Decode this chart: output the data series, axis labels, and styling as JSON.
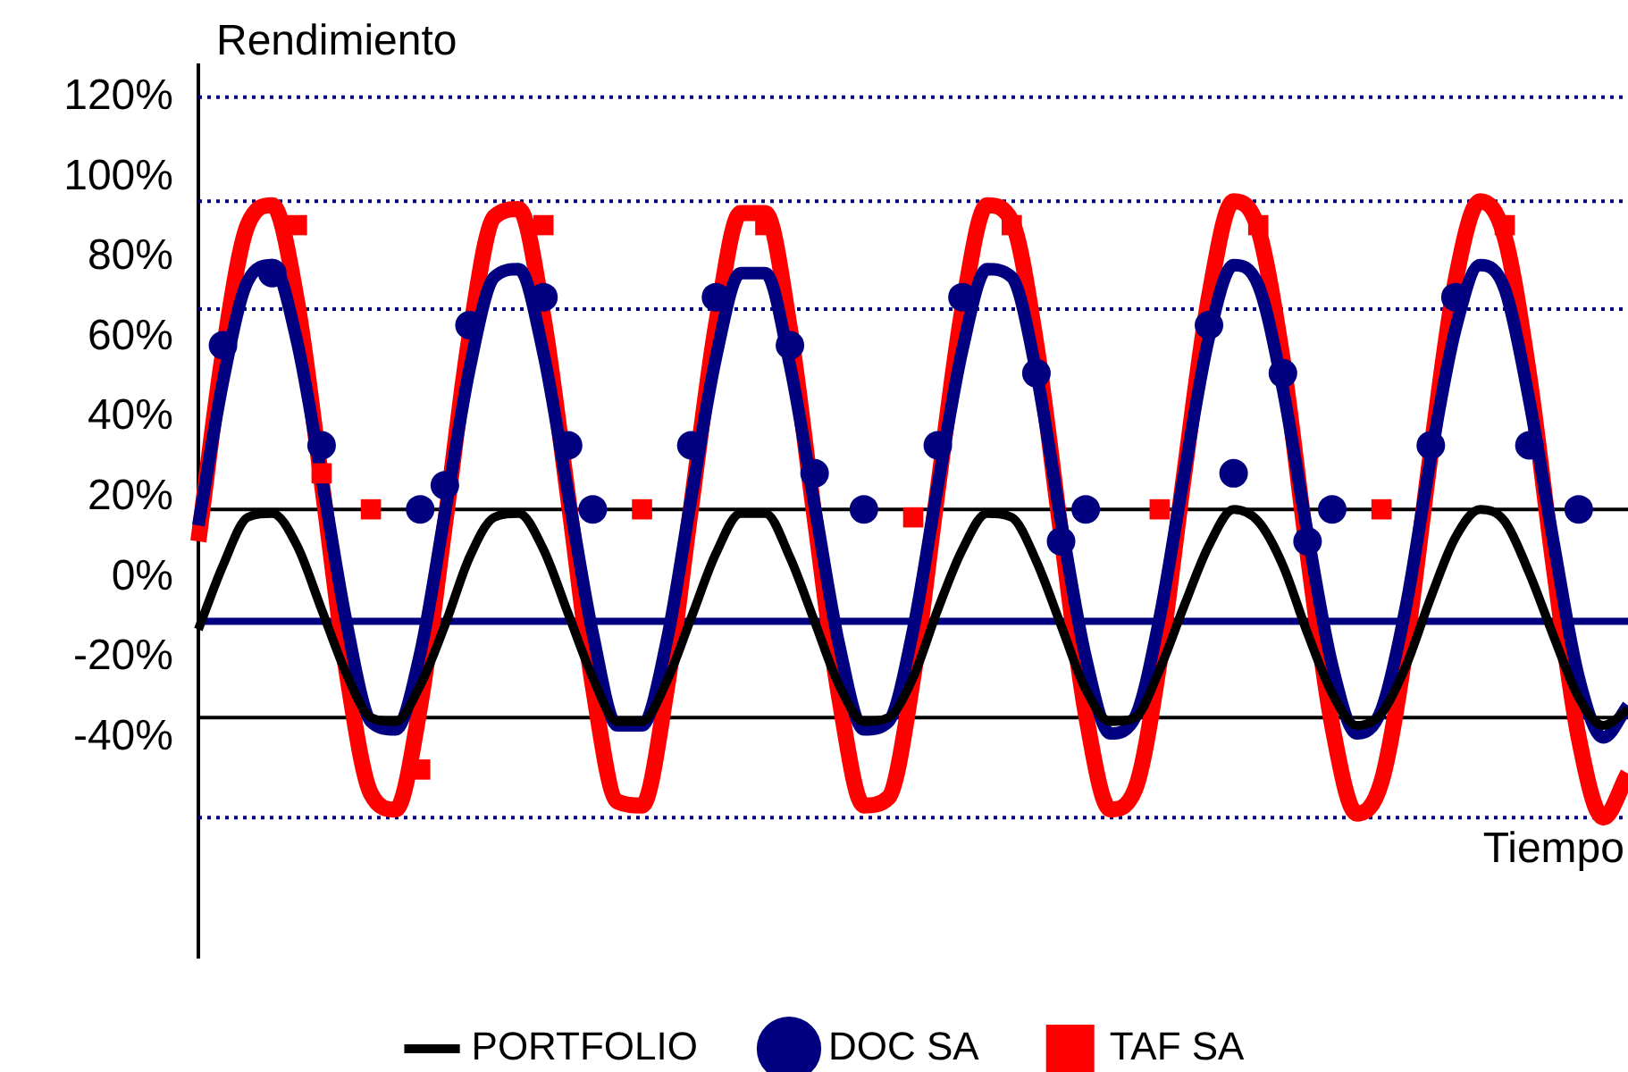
{
  "chart_data": {
    "type": "line",
    "ylabel": "Rendimiento",
    "xlabel": "Tiempo",
    "categories": [
      null,
      null,
      null,
      null,
      null,
      null,
      null,
      null,
      null,
      null,
      null,
      null,
      null,
      null,
      null,
      null,
      null,
      null,
      null,
      null,
      null,
      null,
      null,
      null,
      null,
      null,
      null,
      null,
      null,
      null,
      null,
      null,
      null,
      null,
      null,
      null,
      null,
      null,
      null,
      null,
      null,
      null,
      null,
      null,
      null,
      null,
      null,
      null,
      null,
      null,
      null,
      null,
      null,
      null,
      null,
      null,
      null,
      null,
      null
    ],
    "series": [
      {
        "name": "PORTFOLIO",
        "color": "#000000",
        "marker": "none",
        "values": [
          -13,
          3,
          15,
          16,
          8,
          -8,
          -24,
          -35,
          -36,
          -27,
          -12,
          5,
          15,
          16,
          7,
          -9,
          -25,
          -36,
          -36,
          -26,
          -10,
          6,
          16,
          16,
          5,
          -11,
          -27,
          -36,
          -35,
          -25,
          -8,
          7,
          16,
          15,
          4,
          -12,
          -28,
          -36,
          -35,
          -23,
          -7,
          8,
          17,
          14,
          3,
          -14,
          -29,
          -37,
          -34,
          -22,
          -5,
          10,
          17,
          14,
          1,
          -15,
          -30,
          -37,
          -33
        ]
      },
      {
        "name": "DOC SA",
        "color": "#000080",
        "marker": "none",
        "values": [
          13,
          49,
          74,
          78,
          59,
          25,
          -11,
          -36,
          -38,
          -19,
          16,
          52,
          75,
          77,
          56,
          21,
          -14,
          -37,
          -37,
          -16,
          20,
          55,
          76,
          76,
          53,
          18,
          -17,
          -38,
          -36,
          -13,
          23,
          57,
          77,
          75,
          51,
          14,
          -20,
          -39,
          -35,
          -10,
          26,
          60,
          78,
          73,
          47,
          11,
          -22,
          -39,
          -33,
          -7,
          30,
          62,
          78,
          72,
          44,
          8,
          -25,
          -40,
          -32
        ]
      },
      {
        "name": "TAF SA",
        "color": "#ff0000",
        "marker": "none",
        "values": [
          9,
          56,
          88,
          93,
          69,
          24,
          -23,
          -54,
          -58,
          -32,
          13,
          60,
          90,
          92,
          65,
          20,
          -27,
          -56,
          -57,
          -28,
          18,
          63,
          91,
          91,
          62,
          15,
          -30,
          -57,
          -55,
          -25,
          22,
          67,
          93,
          89,
          58,
          11,
          -34,
          -58,
          -53,
          -21,
          26,
          70,
          94,
          87,
          54,
          6,
          -37,
          -59,
          -51,
          -17,
          31,
          74,
          94,
          85,
          50,
          2,
          -40,
          -60,
          -49
        ]
      },
      {
        "type": "scatter",
        "color": "#000080",
        "marker": "circle",
        "values": [
          null,
          58,
          null,
          76,
          null,
          33,
          null,
          null,
          null,
          17,
          23,
          63,
          null,
          null,
          70,
          33,
          17,
          null,
          null,
          null,
          33,
          70,
          null,
          null,
          58,
          26,
          null,
          17,
          null,
          null,
          33,
          70,
          null,
          null,
          51,
          9,
          17,
          null,
          null,
          null,
          null,
          63,
          26,
          null,
          51,
          9,
          17,
          null,
          null,
          null,
          33,
          70,
          null,
          null,
          33,
          null,
          17,
          null,
          null
        ]
      },
      {
        "type": "scatter",
        "color": "#ff0000",
        "marker": "square",
        "values": [
          null,
          null,
          null,
          null,
          88,
          26,
          null,
          17,
          null,
          -48,
          null,
          null,
          null,
          null,
          88,
          null,
          null,
          null,
          17,
          null,
          null,
          null,
          null,
          88,
          null,
          null,
          null,
          null,
          null,
          15,
          null,
          null,
          null,
          88,
          null,
          null,
          null,
          null,
          null,
          17,
          null,
          null,
          null,
          88,
          null,
          null,
          null,
          null,
          17,
          null,
          null,
          null,
          null,
          88,
          null,
          null,
          null,
          null,
          null
        ]
      }
    ],
    "ylim": [
      -95,
      128
    ],
    "yticks": [
      {
        "value": 120,
        "label": "120%"
      },
      {
        "value": 100,
        "label": "100%"
      },
      {
        "value": 80,
        "label": "80%"
      },
      {
        "value": 60,
        "label": "60%"
      },
      {
        "value": 40,
        "label": "40%"
      },
      {
        "value": 20,
        "label": "20%"
      },
      {
        "value": 0,
        "label": "0%"
      },
      {
        "value": -20,
        "label": "-20%"
      },
      {
        "value": -40,
        "label": "-40%"
      }
    ],
    "ref_lines": [
      {
        "axis": "y",
        "value": 120,
        "color": "#000080",
        "line_style": "dotted"
      },
      {
        "axis": "y",
        "value": 94,
        "color": "#000080",
        "line_style": "dotted"
      },
      {
        "axis": "y",
        "value": 67,
        "color": "#000080",
        "line_style": "dotted"
      },
      {
        "axis": "y",
        "value": 17,
        "color": "#000000",
        "line_style": "solid"
      },
      {
        "axis": "y",
        "value": -11,
        "color": "#000080",
        "line_style": "solid"
      },
      {
        "axis": "y",
        "value": -35,
        "color": "#000000",
        "line_style": "solid"
      },
      {
        "axis": "y",
        "value": -60,
        "color": "#000080",
        "line_style": "dotted"
      }
    ],
    "tick_labels": "y",
    "grid": false,
    "legend": "bottom"
  }
}
